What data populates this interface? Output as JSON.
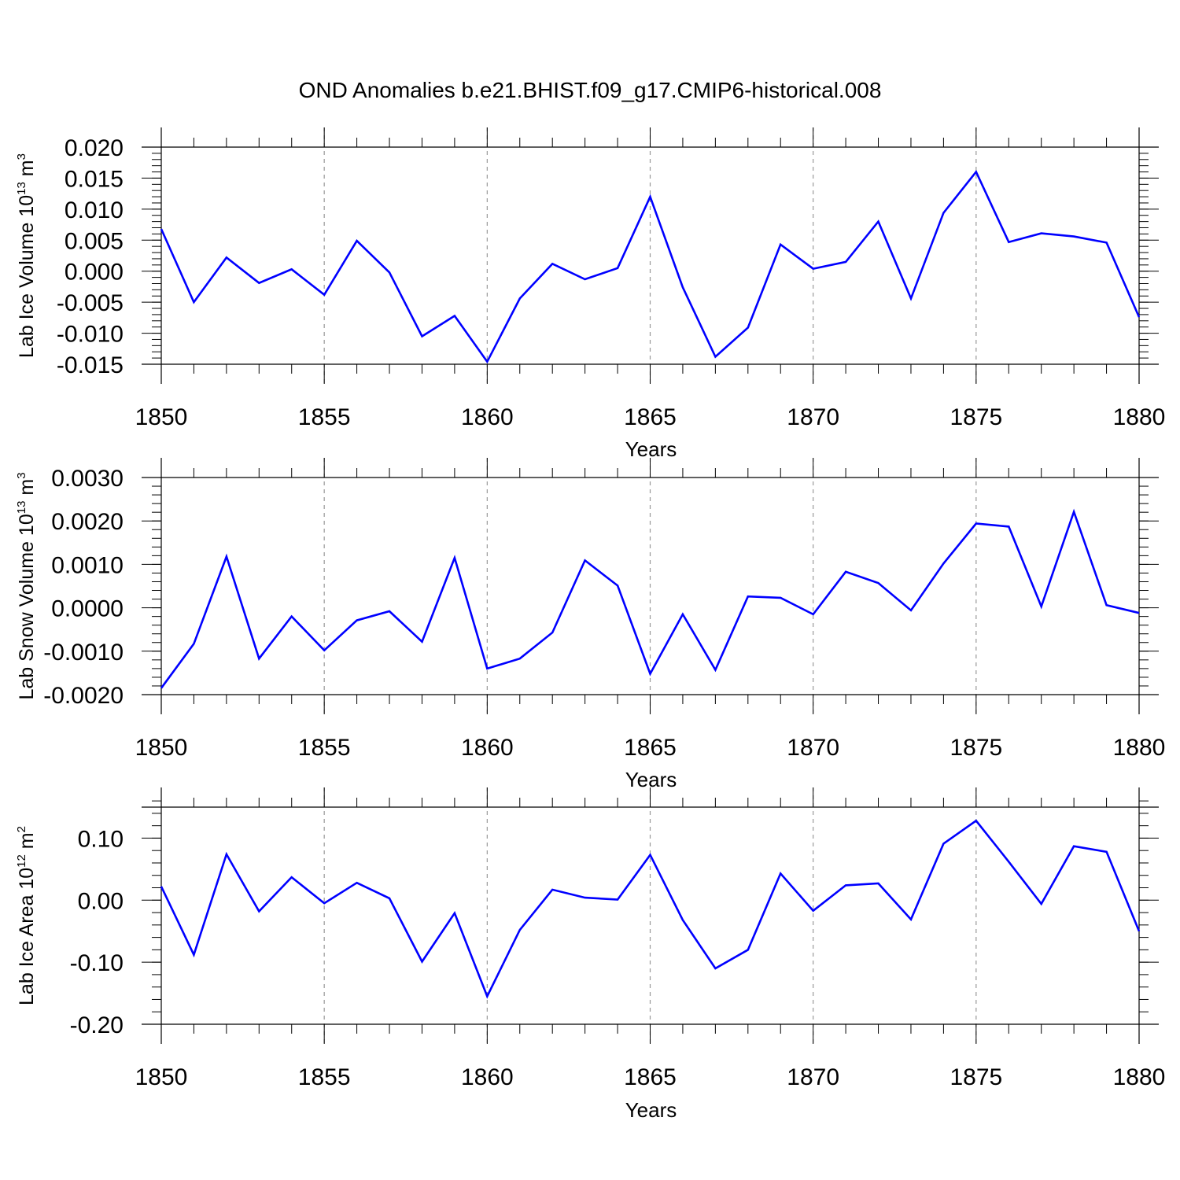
{
  "title": "OND Anomalies b.e21.BHIST.f09_g17.CMIP6-historical.008",
  "chart_data": [
    {
      "type": "line",
      "ylabel": "Lab Ice Volume 10",
      "ylabel_exp": "13",
      "ylabel_unit": " m",
      "ylabel_unit_exp": "3",
      "xlabel": "Years",
      "xlim": [
        1850,
        1880
      ],
      "ylim": [
        -0.015,
        0.02
      ],
      "yticks": [
        -0.015,
        -0.01,
        -0.005,
        0.0,
        0.005,
        0.01,
        0.015,
        0.02
      ],
      "ytick_labels": [
        "-0.015",
        "-0.010",
        "-0.005",
        "0.000",
        "0.005",
        "0.010",
        "0.015",
        "0.020"
      ],
      "ytick_minor_step": 0.001,
      "xticks": [
        1850,
        1855,
        1860,
        1865,
        1870,
        1875,
        1880
      ],
      "xtick_labels": [
        "1850",
        "1855",
        "1860",
        "1865",
        "1870",
        "1875",
        "1880"
      ],
      "line_color": "#0000ff",
      "x": [
        1850,
        1851,
        1852,
        1853,
        1854,
        1855,
        1856,
        1857,
        1858,
        1859,
        1860,
        1861,
        1862,
        1863,
        1864,
        1865,
        1866,
        1867,
        1868,
        1869,
        1870,
        1871,
        1872,
        1873,
        1874,
        1875,
        1876,
        1877,
        1878,
        1879,
        1880
      ],
      "values": [
        0.0068,
        -0.005,
        0.0022,
        -0.0019,
        0.0003,
        -0.0038,
        0.0049,
        -0.0002,
        -0.0105,
        -0.0072,
        -0.0146,
        -0.0044,
        0.0012,
        -0.0013,
        0.0005,
        0.012,
        -0.0026,
        -0.0138,
        -0.0091,
        0.0043,
        0.0004,
        0.0015,
        0.008,
        -0.0044,
        0.0094,
        0.016,
        0.0047,
        0.0061,
        0.0056,
        0.0046,
        -0.0074
      ]
    },
    {
      "type": "line",
      "ylabel": "Lab Snow Volume 10",
      "ylabel_exp": "13",
      "ylabel_unit": " m",
      "ylabel_unit_exp": "3",
      "xlabel": "Years",
      "xlim": [
        1850,
        1880
      ],
      "ylim": [
        -0.002,
        0.003
      ],
      "yticks": [
        -0.002,
        -0.001,
        0.0,
        0.001,
        0.002,
        0.003
      ],
      "ytick_labels": [
        "-0.0020",
        "-0.0010",
        "0.0000",
        "0.0010",
        "0.0020",
        "0.0030"
      ],
      "ytick_minor_step": 0.0002,
      "xticks": [
        1850,
        1855,
        1860,
        1865,
        1870,
        1875,
        1880
      ],
      "xtick_labels": [
        "1850",
        "1855",
        "1860",
        "1865",
        "1870",
        "1875",
        "1880"
      ],
      "line_color": "#0000ff",
      "x": [
        1850,
        1851,
        1852,
        1853,
        1854,
        1855,
        1856,
        1857,
        1858,
        1859,
        1860,
        1861,
        1862,
        1863,
        1864,
        1865,
        1866,
        1867,
        1868,
        1869,
        1870,
        1871,
        1872,
        1873,
        1874,
        1875,
        1876,
        1877,
        1878,
        1879,
        1880
      ],
      "values": [
        -0.00185,
        -0.00083,
        0.00118,
        -0.00117,
        -0.0002,
        -0.00098,
        -0.00029,
        -8e-05,
        -0.00078,
        0.00115,
        -0.0014,
        -0.00117,
        -0.00057,
        0.00109,
        0.00051,
        -0.00152,
        -0.00015,
        -0.00143,
        0.00026,
        0.00023,
        -0.00015,
        0.00083,
        0.00057,
        -6e-05,
        0.00102,
        0.00194,
        0.00187,
        3e-05,
        0.00221,
        6e-05,
        -0.00012
      ]
    },
    {
      "type": "line",
      "ylabel": "Lab Ice Area 10",
      "ylabel_exp": "12",
      "ylabel_unit": " m",
      "ylabel_unit_exp": "2",
      "xlabel": "Years",
      "xlim": [
        1850,
        1880
      ],
      "ylim": [
        -0.2,
        0.15
      ],
      "yticks": [
        -0.2,
        -0.1,
        0.0,
        0.1
      ],
      "ytick_labels": [
        "-0.20",
        "-0.10",
        "0.00",
        "0.10"
      ],
      "ytick_minor_step": 0.02,
      "xticks": [
        1850,
        1855,
        1860,
        1865,
        1870,
        1875,
        1880
      ],
      "xtick_labels": [
        "1850",
        "1855",
        "1860",
        "1865",
        "1870",
        "1875",
        "1880"
      ],
      "line_color": "#0000ff",
      "x": [
        1850,
        1851,
        1852,
        1853,
        1854,
        1855,
        1856,
        1857,
        1858,
        1859,
        1860,
        1861,
        1862,
        1863,
        1864,
        1865,
        1866,
        1867,
        1868,
        1869,
        1870,
        1871,
        1872,
        1873,
        1874,
        1875,
        1876,
        1877,
        1878,
        1879,
        1880
      ],
      "values": [
        0.022,
        -0.088,
        0.074,
        -0.018,
        0.037,
        -0.005,
        0.028,
        0.003,
        -0.099,
        -0.021,
        -0.155,
        -0.048,
        0.017,
        0.004,
        0.001,
        0.073,
        -0.032,
        -0.11,
        -0.08,
        0.043,
        -0.017,
        0.024,
        0.027,
        -0.031,
        0.091,
        0.128,
        0.062,
        -0.006,
        0.087,
        0.078,
        -0.05
      ]
    }
  ]
}
